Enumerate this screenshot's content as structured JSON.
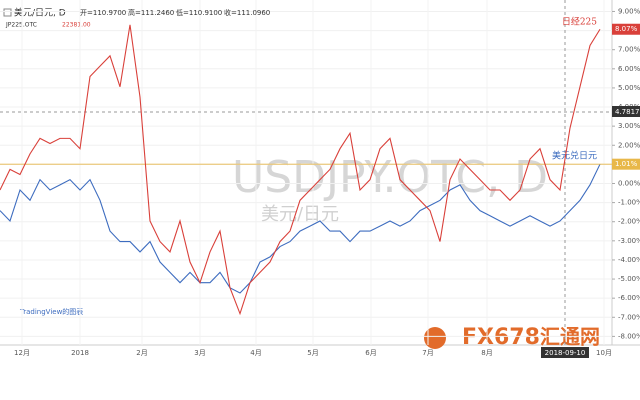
{
  "chart_data": {
    "type": "line",
    "watermark": "USDJPY.OTC, D",
    "watermark_sub": "美元/日元",
    "ohlc": [
      "开=110.9700",
      "高=111.2460",
      "低=110.9100",
      "收=111.0960"
    ],
    "x": [
      0,
      1,
      2,
      3,
      4,
      5,
      6,
      7,
      8,
      9,
      10,
      11,
      12,
      13,
      14,
      15,
      16,
      17,
      18,
      19,
      20,
      21,
      22,
      23,
      24,
      25,
      26,
      27,
      28,
      29,
      30,
      31,
      32,
      33,
      34,
      35,
      36,
      37,
      38,
      39,
      40,
      41,
      42,
      43,
      44,
      45,
      46,
      47,
      48,
      49,
      50,
      51,
      52,
      53,
      54,
      55,
      56,
      57,
      58,
      59,
      60
    ],
    "xlim": [
      0,
      61.2
    ],
    "xticks": [
      {
        "value": 2.2,
        "label": "12月"
      },
      {
        "value": 8,
        "label": "2018"
      },
      {
        "value": 14.2,
        "label": "2月"
      },
      {
        "value": 20,
        "label": "3月"
      },
      {
        "value": 25.6,
        "label": "4月"
      },
      {
        "value": 31.3,
        "label": "5月"
      },
      {
        "value": 37.1,
        "label": "6月"
      },
      {
        "value": 42.8,
        "label": "7月"
      },
      {
        "value": 48.7,
        "label": "8月"
      },
      {
        "value": 60.4,
        "label": "10月"
      }
    ],
    "crosshair_x": {
      "value": 56.5,
      "label": "2018-09-10"
    },
    "crosshair_y": "4.7817",
    "ylim": [
      -8.45,
      9.6
    ],
    "yticks": [
      {
        "value": 9,
        "label": "9.00%"
      },
      {
        "value": 8,
        "label": "8.00%"
      },
      {
        "value": 7,
        "label": "7.00%"
      },
      {
        "value": 6,
        "label": "6.00%"
      },
      {
        "value": 5,
        "label": "5.00%"
      },
      {
        "value": 4,
        "label": "4.00%"
      },
      {
        "value": 3,
        "label": "3.00%"
      },
      {
        "value": 2,
        "label": "2.00%"
      },
      {
        "value": 1,
        "label": "1.00%"
      },
      {
        "value": 0,
        "label": "0.00%"
      },
      {
        "value": -1,
        "label": "-1.00%"
      },
      {
        "value": -2,
        "label": "-2.00%"
      },
      {
        "value": -3,
        "label": "-3.00%"
      },
      {
        "value": -4,
        "label": "-4.00%"
      },
      {
        "value": -5,
        "label": "-5.00%"
      },
      {
        "value": -6,
        "label": "-6.00%"
      },
      {
        "value": -7,
        "label": "-7.00%"
      },
      {
        "value": -8,
        "label": "-8.00%"
      }
    ],
    "series": [
      {
        "name": "美元/日元, D",
        "color": "#3d6cbf",
        "end_label": "美元兑日元",
        "last_badge": "1.01%",
        "badge_color": "#e8b84a",
        "values": [
          -1.42,
          -1.96,
          -0.34,
          -0.88,
          0.2,
          -0.34,
          -0.07,
          0.2,
          -0.34,
          0.2,
          -0.88,
          -2.49,
          -3.04,
          -3.04,
          -3.58,
          -3.04,
          -4.11,
          -4.65,
          -5.19,
          -4.65,
          -5.19,
          -5.19,
          -4.65,
          -5.46,
          -5.73,
          -5.19,
          -4.11,
          -3.84,
          -3.3,
          -3.04,
          -2.49,
          -2.23,
          -1.96,
          -2.49,
          -2.49,
          -3.04,
          -2.49,
          -2.49,
          -2.23,
          -1.96,
          -2.23,
          -1.96,
          -1.42,
          -1.15,
          -0.88,
          -0.34,
          -0.07,
          -0.88,
          -1.42,
          -1.69,
          -1.96,
          -2.23,
          -1.96,
          -1.69,
          -1.96,
          -2.23,
          -1.96,
          -1.42,
          -0.88,
          -0.07,
          1.01
        ]
      },
      {
        "name": "JP225.OTC",
        "legend_value": "22381.00",
        "color": "#d9403a",
        "end_label": "日经225",
        "last_badge": "8.07%",
        "badge_color": "#d9403a",
        "values": [
          -0.34,
          0.74,
          0.47,
          1.55,
          2.36,
          2.09,
          2.36,
          2.36,
          1.82,
          5.6,
          6.14,
          6.68,
          5.06,
          8.3,
          4.52,
          -1.96,
          -3.04,
          -3.58,
          -1.96,
          -4.11,
          -5.19,
          -3.58,
          -2.49,
          -5.46,
          -6.81,
          -5.19,
          -4.65,
          -4.11,
          -3.04,
          -2.49,
          -0.88,
          -0.34,
          0.2,
          0.74,
          1.82,
          2.63,
          -0.34,
          0.2,
          1.82,
          2.36,
          0.2,
          -0.34,
          -0.88,
          -1.42,
          -3.04,
          0.2,
          1.28,
          0.74,
          0.2,
          -0.34,
          -0.34,
          -0.88,
          -0.34,
          1.28,
          1.82,
          0.2,
          -0.34,
          2.9,
          5.06,
          7.22,
          8.07
        ]
      }
    ],
    "footer_left": "TradingView的图表",
    "logo": "FX678",
    "logo_sub": "汇通网"
  }
}
